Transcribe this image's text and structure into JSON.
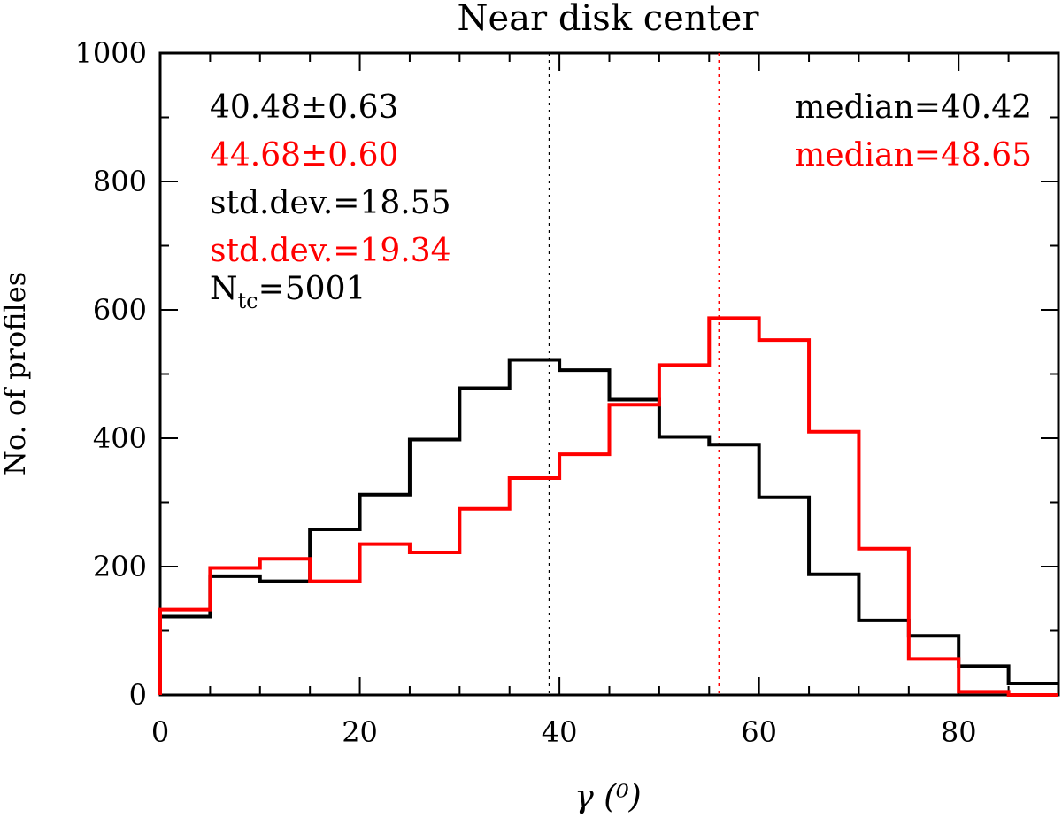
{
  "chart_data": {
    "type": "bar",
    "title": "Near disk center",
    "xlabel": "γ (⁰)",
    "ylabel": "No. of profiles",
    "xlim": [
      0,
      90
    ],
    "ylim": [
      0,
      1000
    ],
    "xticks": [
      0,
      20,
      40,
      60,
      80
    ],
    "yticks": [
      0,
      200,
      400,
      600,
      800,
      1000
    ],
    "grid": false,
    "bin_edges": [
      0,
      5,
      10,
      15,
      20,
      25,
      30,
      35,
      40,
      45,
      50,
      55,
      60,
      65,
      70,
      75,
      80,
      85,
      90
    ],
    "series": [
      {
        "color": "#000000",
        "values": [
          122,
          185,
          177,
          258,
          312,
          398,
          478,
          522,
          506,
          460,
          402,
          390,
          308,
          188,
          116,
          92,
          45,
          18
        ]
      },
      {
        "color": "#ff0000",
        "values": [
          133,
          198,
          212,
          177,
          235,
          222,
          290,
          338,
          375,
          452,
          514,
          587,
          553,
          410,
          228,
          56,
          5,
          0
        ]
      }
    ],
    "vlines": [
      {
        "x": 39,
        "color": "#000000"
      },
      {
        "x": 56,
        "color": "#ff0000"
      }
    ],
    "annotations_left": [
      {
        "text": "40.48±0.63",
        "color": "#000000"
      },
      {
        "text": "44.68±0.60",
        "color": "#ff0000"
      },
      {
        "text": "std.dev.=18.55",
        "color": "#000000"
      },
      {
        "text": "std.dev.=19.34",
        "color": "#ff0000"
      }
    ],
    "ntc": {
      "main": "N",
      "sub": "tc",
      "value": "=5001",
      "color": "#000000"
    },
    "annotations_right": [
      {
        "text": "median=40.42",
        "color": "#000000"
      },
      {
        "text": "median=48.65",
        "color": "#ff0000"
      }
    ]
  }
}
